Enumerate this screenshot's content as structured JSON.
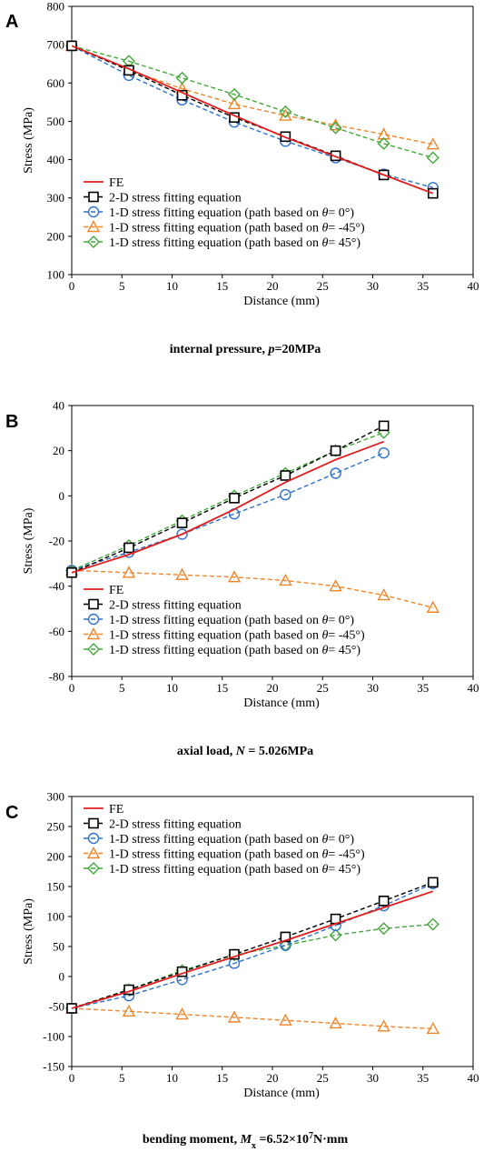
{
  "legend": [
    {
      "key": "fe",
      "label": "FE",
      "color": "#e01e1e",
      "marker": "none",
      "dash": false
    },
    {
      "key": "fit2d",
      "label": "2-D stress fitting equation",
      "color": "#000000",
      "marker": "square",
      "dash": true
    },
    {
      "key": "theta0",
      "label_prefix": "1-D stress fitting equation (path based on ",
      "label_theta": "θ",
      "label_suffix": "= 0°)",
      "color": "#2f72c9",
      "marker": "circle",
      "dash": true
    },
    {
      "key": "thetam45",
      "label_prefix": "1-D stress fitting equation (path based on ",
      "label_theta": "θ",
      "label_suffix": "= -45°)",
      "color": "#f0852a",
      "marker": "triangle",
      "dash": true
    },
    {
      "key": "theta45",
      "label_prefix": "1-D stress fitting equation (path based on ",
      "label_theta": "θ",
      "label_suffix": "= 45°)",
      "color": "#43a83a",
      "marker": "diamond",
      "dash": true
    }
  ],
  "chart_data": [
    {
      "type": "line",
      "panel_label": "A",
      "xlabel": "Distance (mm)",
      "ylabel": "Stress (MPa)",
      "xlim": [
        0,
        40
      ],
      "ylim": [
        100,
        800
      ],
      "xticks": [
        0,
        5,
        10,
        15,
        20,
        25,
        30,
        35,
        40
      ],
      "yticks": [
        100,
        200,
        300,
        400,
        500,
        600,
        700,
        800
      ],
      "caption_parts": [
        {
          "text": "internal pressure, ",
          "italic": false
        },
        {
          "text": "p",
          "italic": true
        },
        {
          "text": "=20MPa",
          "italic": false
        }
      ],
      "series": [
        {
          "key": "fe",
          "x": [
            0,
            5.7,
            11,
            16.2,
            21.3,
            26.3,
            31.1,
            36
          ],
          "y": [
            697,
            637,
            575,
            515,
            458,
            408,
            360,
            312
          ]
        },
        {
          "key": "fit2d",
          "x": [
            0,
            5.7,
            11,
            16.2,
            21.3,
            26.3,
            31.1,
            36
          ],
          "y": [
            697,
            633,
            568,
            510,
            460,
            410,
            360,
            312
          ]
        },
        {
          "key": "theta0",
          "x": [
            0,
            5.7,
            11,
            16.2,
            21.3,
            26.3,
            31.1,
            36
          ],
          "y": [
            697,
            620,
            556,
            498,
            448,
            405,
            362,
            327
          ]
        },
        {
          "key": "thetam45",
          "x": [
            0,
            5.7,
            11,
            16.2,
            21.3,
            26.3,
            31.1,
            36
          ],
          "y": [
            697,
            634,
            585,
            545,
            515,
            490,
            466,
            440
          ]
        },
        {
          "key": "theta45",
          "x": [
            0,
            5.7,
            11,
            16.2,
            21.3,
            26.3,
            31.1,
            36
          ],
          "y": [
            697,
            657,
            613,
            570,
            525,
            483,
            442,
            405
          ]
        }
      ]
    },
    {
      "type": "line",
      "panel_label": "B",
      "xlabel": "Distance (mm)",
      "ylabel": "Stress (MPa)",
      "xlim": [
        0,
        40
      ],
      "ylim": [
        -80,
        40
      ],
      "xticks": [
        0,
        5,
        10,
        15,
        20,
        25,
        30,
        35,
        40
      ],
      "yticks": [
        -80,
        -60,
        -40,
        -20,
        0,
        20,
        40
      ],
      "caption_parts": [
        {
          "text": "axial load, ",
          "italic": false
        },
        {
          "text": "N",
          "italic": true
        },
        {
          "text": " = 5.026MPa",
          "italic": false
        }
      ],
      "series": [
        {
          "key": "fe",
          "x": [
            0,
            5.7,
            11,
            16.2,
            21.3,
            26.3,
            31.1
          ],
          "y": [
            -34,
            -26,
            -17,
            -6,
            6,
            16,
            24
          ]
        },
        {
          "key": "fit2d",
          "x": [
            0,
            5.7,
            11,
            16.2,
            21.3,
            26.3,
            31.1
          ],
          "y": [
            -34,
            -23,
            -12,
            -1,
            9,
            20,
            31
          ]
        },
        {
          "key": "theta0",
          "x": [
            0,
            5.7,
            11,
            16.2,
            21.3,
            26.3,
            31.1
          ],
          "y": [
            -33,
            -25,
            -17,
            -8,
            0.5,
            10,
            19
          ]
        },
        {
          "key": "thetam45",
          "x": [
            0,
            5.7,
            11,
            16.2,
            21.3,
            26.3,
            31.1,
            36
          ],
          "y": [
            -33,
            -34,
            -35,
            -36,
            -37.5,
            -40,
            -44,
            -49.5
          ]
        },
        {
          "key": "theta45",
          "x": [
            0,
            5.7,
            11,
            16.2,
            21.3,
            26.3,
            31.1
          ],
          "y": [
            -33,
            -22,
            -11,
            0,
            10,
            20,
            28
          ]
        }
      ]
    },
    {
      "type": "line",
      "panel_label": "C",
      "xlabel": "Distance (mm)",
      "ylabel": "Stress (MPa)",
      "xlim": [
        0,
        40
      ],
      "ylim": [
        -150,
        300
      ],
      "xticks": [
        0,
        5,
        10,
        15,
        20,
        25,
        30,
        35,
        40
      ],
      "yticks": [
        -150,
        -100,
        -50,
        0,
        50,
        100,
        150,
        200,
        250,
        300
      ],
      "caption_parts": [
        {
          "text": "bending moment, ",
          "italic": false
        },
        {
          "text": "M",
          "italic": true
        },
        {
          "text": "x",
          "italic": false,
          "sub": true
        },
        {
          "text": " =6.52×10",
          "italic": false
        },
        {
          "text": "7",
          "italic": false,
          "sup": true
        },
        {
          "text": "N·mm",
          "italic": false
        }
      ],
      "series": [
        {
          "key": "fe",
          "x": [
            0,
            5.7,
            11,
            16.2,
            21.3,
            26.3,
            31.1,
            36
          ],
          "y": [
            -53,
            -25,
            5,
            33,
            60,
            88,
            115,
            142
          ]
        },
        {
          "key": "fit2d",
          "x": [
            0,
            5.7,
            11,
            16.2,
            21.3,
            26.3,
            31.1,
            36
          ],
          "y": [
            -53,
            -22,
            8,
            37,
            66,
            96,
            126,
            157
          ]
        },
        {
          "key": "theta0",
          "x": [
            0,
            5.7,
            11,
            16.2,
            21.3,
            26.3,
            31.1,
            36
          ],
          "y": [
            -53,
            -32,
            -5,
            22,
            52,
            85,
            118,
            155
          ]
        },
        {
          "key": "thetam45",
          "x": [
            0,
            5.7,
            11,
            16.2,
            21.3,
            26.3,
            31.1,
            36
          ],
          "y": [
            -53,
            -58,
            -63,
            -68,
            -73,
            -78,
            -83,
            -87
          ]
        },
        {
          "key": "theta45",
          "x": [
            0,
            5.7,
            11,
            16.2,
            21.3,
            26.3,
            31.1,
            36
          ],
          "y": [
            -53,
            -22,
            10,
            36,
            52,
            69,
            80,
            87
          ]
        }
      ]
    }
  ]
}
